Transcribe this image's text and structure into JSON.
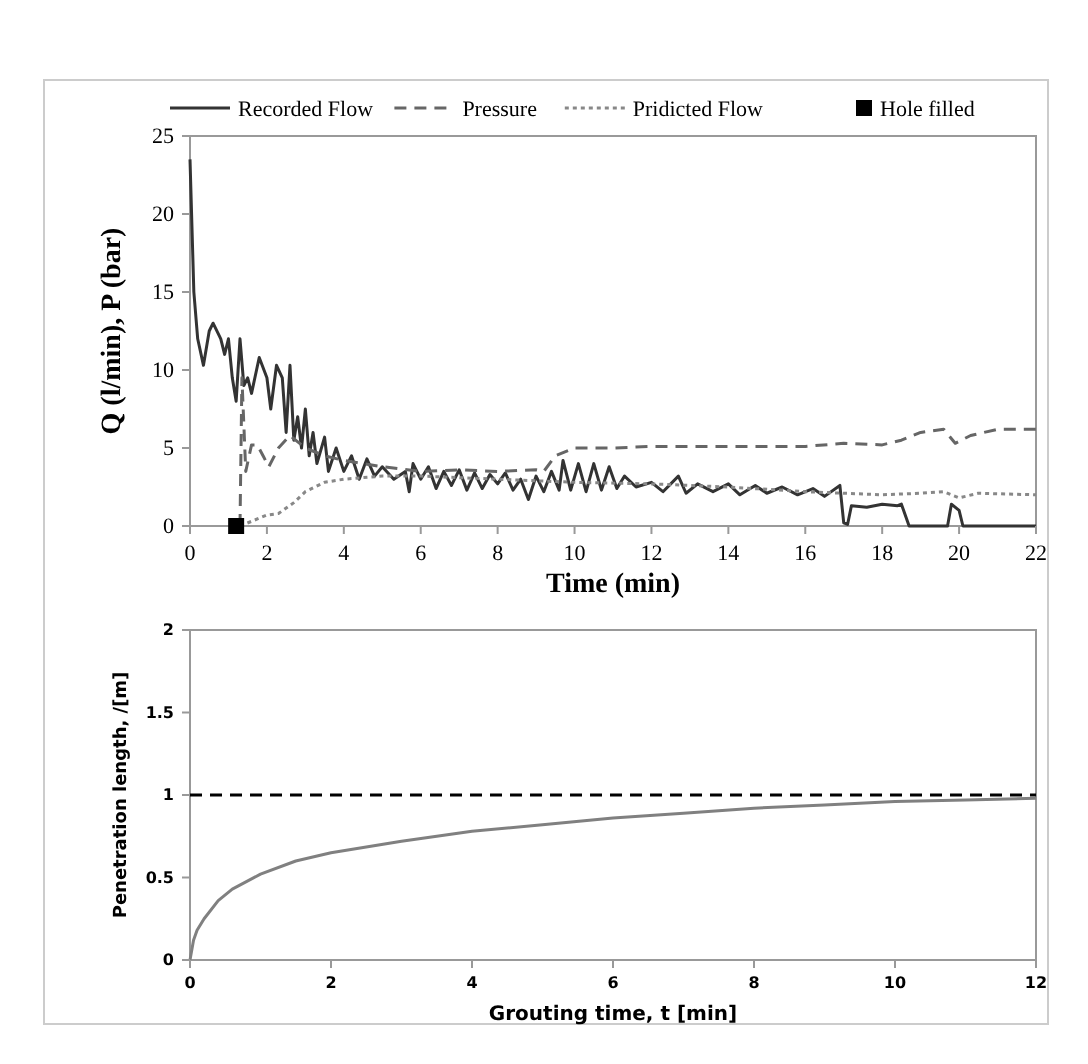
{
  "chart_data": [
    {
      "type": "line",
      "xlabel": "Time (min)",
      "ylabel": "Q (l/min),  P (bar)",
      "xlim": [
        0,
        22
      ],
      "xticks": [
        0,
        2,
        4,
        6,
        8,
        10,
        12,
        14,
        16,
        18,
        20,
        22
      ],
      "ylim": [
        0,
        25
      ],
      "yticks": [
        0,
        5,
        10,
        15,
        20,
        25
      ],
      "grid": false,
      "legend": "top",
      "series": [
        {
          "name": "Recorded Flow",
          "color": "#333333",
          "line_style": "solid",
          "x": [
            0,
            0.1,
            0.2,
            0.35,
            0.5,
            0.6,
            0.8,
            0.9,
            1.0,
            1.1,
            1.2,
            1.3,
            1.4,
            1.5,
            1.6,
            1.8,
            2.0,
            2.1,
            2.25,
            2.4,
            2.5,
            2.6,
            2.7,
            2.8,
            2.9,
            3.0,
            3.1,
            3.2,
            3.3,
            3.5,
            3.6,
            3.8,
            4.0,
            4.2,
            4.4,
            4.6,
            4.8,
            5.0,
            5.3,
            5.6,
            5.7,
            5.8,
            6.0,
            6.2,
            6.4,
            6.6,
            6.8,
            7.0,
            7.2,
            7.4,
            7.6,
            7.8,
            8.0,
            8.2,
            8.4,
            8.6,
            8.8,
            9.0,
            9.2,
            9.4,
            9.6,
            9.7,
            9.9,
            10.1,
            10.3,
            10.5,
            10.7,
            10.9,
            11.1,
            11.3,
            11.6,
            12,
            12.3,
            12.7,
            12.9,
            13.2,
            13.6,
            14,
            14.3,
            14.7,
            15,
            15.4,
            15.8,
            16.2,
            16.5,
            16.9,
            17.0,
            17.1,
            17.2,
            17.6,
            18,
            18.4,
            18.5,
            18.7,
            19.7,
            19.8,
            20.0,
            20.1,
            22
          ],
          "values": [
            23.5,
            15,
            12,
            10.3,
            12.5,
            13,
            12,
            11,
            12,
            9.5,
            8,
            12,
            9,
            9.5,
            8.5,
            10.8,
            9.5,
            7.5,
            10.3,
            9.5,
            6,
            10.3,
            5.5,
            7,
            5,
            7.5,
            4.5,
            6,
            4,
            5.7,
            3.5,
            5,
            3.5,
            4.5,
            3,
            4.3,
            3.2,
            3.8,
            3,
            3.5,
            2.2,
            4,
            3,
            3.8,
            2.4,
            3.5,
            2.6,
            3.6,
            2.3,
            3.4,
            2.4,
            3.3,
            2.7,
            3.4,
            2.3,
            3,
            1.7,
            3.2,
            2.2,
            3.5,
            2.3,
            4.2,
            2.3,
            4,
            2.2,
            4,
            2.3,
            3.8,
            2.4,
            3.2,
            2.5,
            2.8,
            2.2,
            3.2,
            2.1,
            2.7,
            2.2,
            2.7,
            2,
            2.6,
            2.1,
            2.5,
            2,
            2.4,
            1.9,
            2.6,
            0.2,
            0.1,
            1.3,
            1.2,
            1.4,
            1.3,
            1.4,
            0,
            0,
            1.4,
            1,
            0,
            0
          ]
        },
        {
          "name": "Pressure",
          "color": "#666666",
          "line_style": "dashed",
          "x": [
            1.3,
            1.35,
            1.45,
            1.6,
            1.75,
            1.9,
            2.05,
            2.3,
            2.6,
            3.0,
            3.5,
            4,
            5,
            6,
            7,
            8,
            9,
            9.2,
            9.5,
            10,
            11,
            12,
            14,
            16,
            17,
            18,
            18.5,
            19,
            19.6,
            19.9,
            20.3,
            21,
            22
          ],
          "values": [
            0,
            9.5,
            3.5,
            5.2,
            5.2,
            4.5,
            3.8,
            5,
            5.8,
            5,
            4.5,
            4.2,
            3.8,
            3.5,
            3.6,
            3.5,
            3.6,
            3.5,
            4.5,
            5,
            5,
            5.1,
            5.1,
            5.1,
            5.3,
            5.2,
            5.5,
            6,
            6.2,
            5.3,
            5.8,
            6.2,
            6.2
          ]
        },
        {
          "name": "Pridicted Flow",
          "color": "#888888",
          "line_style": "dotted",
          "x": [
            1.3,
            1.6,
            2,
            2.3,
            2.7,
            3,
            3.5,
            4,
            5,
            6,
            8,
            10,
            12,
            14,
            16,
            17,
            18,
            19,
            19.6,
            20,
            20.5,
            22
          ],
          "values": [
            0,
            0.3,
            0.7,
            0.8,
            1.5,
            2.2,
            2.8,
            3,
            3.2,
            3.2,
            3,
            2.8,
            2.7,
            2.5,
            2.2,
            2.1,
            2,
            2.1,
            2.2,
            1.8,
            2.1,
            2
          ]
        },
        {
          "name": "Hole filled",
          "type": "scatter",
          "marker": "square",
          "color": "#000000",
          "x": [
            1.2
          ],
          "values": [
            0
          ]
        }
      ]
    },
    {
      "type": "line",
      "xlabel": "Grouting time, t [min]",
      "ylabel": "Penetration length, /[m]",
      "xlim": [
        0,
        12
      ],
      "xticks": [
        0,
        2,
        4,
        6,
        8,
        10,
        12
      ],
      "ylim": [
        0,
        2
      ],
      "yticks": [
        0,
        0.5,
        1,
        1.5,
        2
      ],
      "grid": false,
      "ref_lines": [
        {
          "axis": "y",
          "value": 1,
          "color": "#000000",
          "line_style": "dashed"
        }
      ],
      "series": [
        {
          "color": "#808080",
          "line_style": "solid",
          "x": [
            0,
            0.05,
            0.1,
            0.2,
            0.4,
            0.6,
            1,
            1.5,
            2,
            3,
            4,
            5,
            6,
            7,
            8,
            9,
            10,
            11,
            12
          ],
          "values": [
            0,
            0.12,
            0.18,
            0.25,
            0.36,
            0.43,
            0.52,
            0.6,
            0.65,
            0.72,
            0.78,
            0.82,
            0.86,
            0.89,
            0.92,
            0.94,
            0.96,
            0.97,
            0.98
          ]
        }
      ]
    }
  ]
}
